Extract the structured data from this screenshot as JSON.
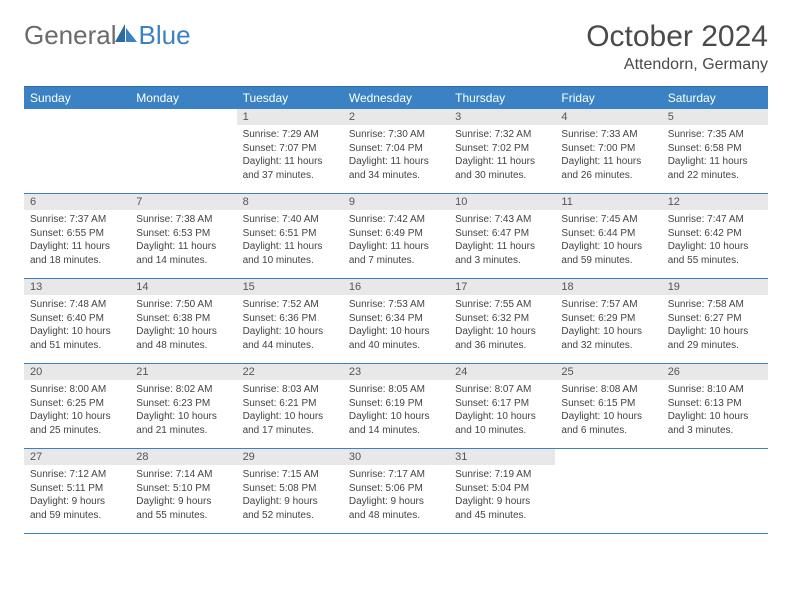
{
  "logo": {
    "part1": "General",
    "part2": "Blue"
  },
  "title": "October 2024",
  "location": "Attendorn, Germany",
  "headers": [
    "Sunday",
    "Monday",
    "Tuesday",
    "Wednesday",
    "Thursday",
    "Friday",
    "Saturday"
  ],
  "colors": {
    "header_bg": "#3b82c4",
    "header_text": "#ffffff",
    "daynum_bg": "#e8e8e8",
    "border": "#3b82c4",
    "logo_gray": "#6b6b6b",
    "logo_blue": "#3b82c4"
  },
  "weeks": [
    [
      null,
      null,
      {
        "n": "1",
        "sr": "Sunrise: 7:29 AM",
        "ss": "Sunset: 7:07 PM",
        "dl": "Daylight: 11 hours and 37 minutes."
      },
      {
        "n": "2",
        "sr": "Sunrise: 7:30 AM",
        "ss": "Sunset: 7:04 PM",
        "dl": "Daylight: 11 hours and 34 minutes."
      },
      {
        "n": "3",
        "sr": "Sunrise: 7:32 AM",
        "ss": "Sunset: 7:02 PM",
        "dl": "Daylight: 11 hours and 30 minutes."
      },
      {
        "n": "4",
        "sr": "Sunrise: 7:33 AM",
        "ss": "Sunset: 7:00 PM",
        "dl": "Daylight: 11 hours and 26 minutes."
      },
      {
        "n": "5",
        "sr": "Sunrise: 7:35 AM",
        "ss": "Sunset: 6:58 PM",
        "dl": "Daylight: 11 hours and 22 minutes."
      }
    ],
    [
      {
        "n": "6",
        "sr": "Sunrise: 7:37 AM",
        "ss": "Sunset: 6:55 PM",
        "dl": "Daylight: 11 hours and 18 minutes."
      },
      {
        "n": "7",
        "sr": "Sunrise: 7:38 AM",
        "ss": "Sunset: 6:53 PM",
        "dl": "Daylight: 11 hours and 14 minutes."
      },
      {
        "n": "8",
        "sr": "Sunrise: 7:40 AM",
        "ss": "Sunset: 6:51 PM",
        "dl": "Daylight: 11 hours and 10 minutes."
      },
      {
        "n": "9",
        "sr": "Sunrise: 7:42 AM",
        "ss": "Sunset: 6:49 PM",
        "dl": "Daylight: 11 hours and 7 minutes."
      },
      {
        "n": "10",
        "sr": "Sunrise: 7:43 AM",
        "ss": "Sunset: 6:47 PM",
        "dl": "Daylight: 11 hours and 3 minutes."
      },
      {
        "n": "11",
        "sr": "Sunrise: 7:45 AM",
        "ss": "Sunset: 6:44 PM",
        "dl": "Daylight: 10 hours and 59 minutes."
      },
      {
        "n": "12",
        "sr": "Sunrise: 7:47 AM",
        "ss": "Sunset: 6:42 PM",
        "dl": "Daylight: 10 hours and 55 minutes."
      }
    ],
    [
      {
        "n": "13",
        "sr": "Sunrise: 7:48 AM",
        "ss": "Sunset: 6:40 PM",
        "dl": "Daylight: 10 hours and 51 minutes."
      },
      {
        "n": "14",
        "sr": "Sunrise: 7:50 AM",
        "ss": "Sunset: 6:38 PM",
        "dl": "Daylight: 10 hours and 48 minutes."
      },
      {
        "n": "15",
        "sr": "Sunrise: 7:52 AM",
        "ss": "Sunset: 6:36 PM",
        "dl": "Daylight: 10 hours and 44 minutes."
      },
      {
        "n": "16",
        "sr": "Sunrise: 7:53 AM",
        "ss": "Sunset: 6:34 PM",
        "dl": "Daylight: 10 hours and 40 minutes."
      },
      {
        "n": "17",
        "sr": "Sunrise: 7:55 AM",
        "ss": "Sunset: 6:32 PM",
        "dl": "Daylight: 10 hours and 36 minutes."
      },
      {
        "n": "18",
        "sr": "Sunrise: 7:57 AM",
        "ss": "Sunset: 6:29 PM",
        "dl": "Daylight: 10 hours and 32 minutes."
      },
      {
        "n": "19",
        "sr": "Sunrise: 7:58 AM",
        "ss": "Sunset: 6:27 PM",
        "dl": "Daylight: 10 hours and 29 minutes."
      }
    ],
    [
      {
        "n": "20",
        "sr": "Sunrise: 8:00 AM",
        "ss": "Sunset: 6:25 PM",
        "dl": "Daylight: 10 hours and 25 minutes."
      },
      {
        "n": "21",
        "sr": "Sunrise: 8:02 AM",
        "ss": "Sunset: 6:23 PM",
        "dl": "Daylight: 10 hours and 21 minutes."
      },
      {
        "n": "22",
        "sr": "Sunrise: 8:03 AM",
        "ss": "Sunset: 6:21 PM",
        "dl": "Daylight: 10 hours and 17 minutes."
      },
      {
        "n": "23",
        "sr": "Sunrise: 8:05 AM",
        "ss": "Sunset: 6:19 PM",
        "dl": "Daylight: 10 hours and 14 minutes."
      },
      {
        "n": "24",
        "sr": "Sunrise: 8:07 AM",
        "ss": "Sunset: 6:17 PM",
        "dl": "Daylight: 10 hours and 10 minutes."
      },
      {
        "n": "25",
        "sr": "Sunrise: 8:08 AM",
        "ss": "Sunset: 6:15 PM",
        "dl": "Daylight: 10 hours and 6 minutes."
      },
      {
        "n": "26",
        "sr": "Sunrise: 8:10 AM",
        "ss": "Sunset: 6:13 PM",
        "dl": "Daylight: 10 hours and 3 minutes."
      }
    ],
    [
      {
        "n": "27",
        "sr": "Sunrise: 7:12 AM",
        "ss": "Sunset: 5:11 PM",
        "dl": "Daylight: 9 hours and 59 minutes."
      },
      {
        "n": "28",
        "sr": "Sunrise: 7:14 AM",
        "ss": "Sunset: 5:10 PM",
        "dl": "Daylight: 9 hours and 55 minutes."
      },
      {
        "n": "29",
        "sr": "Sunrise: 7:15 AM",
        "ss": "Sunset: 5:08 PM",
        "dl": "Daylight: 9 hours and 52 minutes."
      },
      {
        "n": "30",
        "sr": "Sunrise: 7:17 AM",
        "ss": "Sunset: 5:06 PM",
        "dl": "Daylight: 9 hours and 48 minutes."
      },
      {
        "n": "31",
        "sr": "Sunrise: 7:19 AM",
        "ss": "Sunset: 5:04 PM",
        "dl": "Daylight: 9 hours and 45 minutes."
      },
      null,
      null
    ]
  ]
}
